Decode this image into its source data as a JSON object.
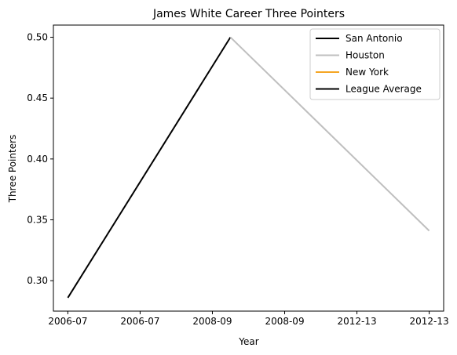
{
  "chart_data": {
    "type": "line",
    "title": "James White  Career Three Pointers",
    "xlabel": "Year",
    "ylabel": "Three Pointers",
    "x_tick_labels": [
      "2006-07",
      "2006-07",
      "2008-09",
      "2008-09",
      "2012-13",
      "2012-13"
    ],
    "x_range": [
      -0.2,
      5.2
    ],
    "ylim": [
      0.275,
      0.51
    ],
    "y_ticks": [
      0.3,
      0.35,
      0.4,
      0.45,
      0.5
    ],
    "y_tick_labels": [
      "0.30",
      "0.35",
      "0.40",
      "0.45",
      "0.50"
    ],
    "grid": false,
    "legend_position": "top-right",
    "series": [
      {
        "name": "San Antonio",
        "color": "#000000",
        "x": [
          0,
          2.25
        ],
        "y": [
          0.286,
          0.5
        ]
      },
      {
        "name": "Houston",
        "color": "#bfbfbf",
        "x": [
          2.25,
          5
        ],
        "y": [
          0.5,
          0.341
        ]
      },
      {
        "name": "New York",
        "color": "#f5a623",
        "x": [],
        "y": []
      },
      {
        "name": "League Average",
        "color": "#000000",
        "x": [],
        "y": []
      }
    ]
  }
}
